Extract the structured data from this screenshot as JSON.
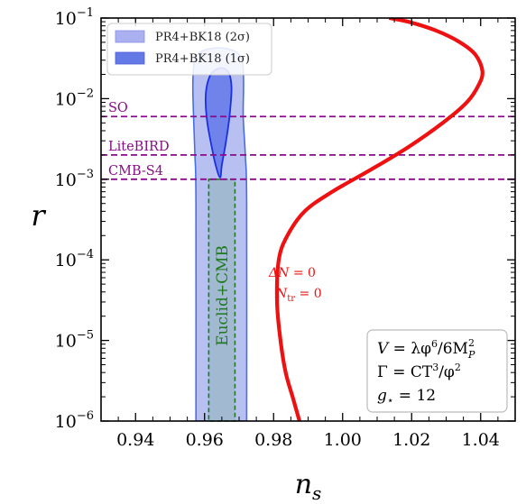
{
  "chart_data": {
    "type": "line",
    "xlabel": "n_s",
    "ylabel": "r",
    "xlim": [
      0.93,
      1.05
    ],
    "ylim": [
      1e-06,
      0.1
    ],
    "yscale": "log",
    "grid": false,
    "x_ticks": [
      {
        "value": 0.94,
        "label": "0.94"
      },
      {
        "value": 0.96,
        "label": "0.96"
      },
      {
        "value": 0.98,
        "label": "0.98"
      },
      {
        "value": 1.0,
        "label": "1.00"
      },
      {
        "value": 1.02,
        "label": "1.02"
      },
      {
        "value": 1.04,
        "label": "1.04"
      }
    ],
    "y_ticks": [
      {
        "value": 1e-06,
        "base": "10",
        "exp": "−6"
      },
      {
        "value": 1e-05,
        "base": "10",
        "exp": "−5"
      },
      {
        "value": 0.0001,
        "base": "10",
        "exp": "−4"
      },
      {
        "value": 0.001,
        "base": "10",
        "exp": "−3"
      },
      {
        "value": 0.01,
        "base": "10",
        "exp": "−2"
      },
      {
        "value": 0.1,
        "base": "10",
        "exp": "−1"
      }
    ],
    "legend": {
      "position": "top-left",
      "entries": [
        {
          "label": "PR4+BK18 (2σ)",
          "color": "#aab0f0"
        },
        {
          "label": "PR4+BK18 (1σ)",
          "color": "#6478e6"
        }
      ]
    },
    "contours": [
      {
        "name": "PR4+BK18 (2σ)",
        "fill": "#aab5ee",
        "stroke": "#4a6ee0",
        "points": [
          [
            0.9575,
            1e-06
          ],
          [
            0.9575,
            0.0005
          ],
          [
            0.9572,
            0.002
          ],
          [
            0.9568,
            0.006
          ],
          [
            0.9566,
            0.015
          ],
          [
            0.957,
            0.028
          ],
          [
            0.9585,
            0.037
          ],
          [
            0.962,
            0.042
          ],
          [
            0.966,
            0.042
          ],
          [
            0.9695,
            0.037
          ],
          [
            0.971,
            0.028
          ],
          [
            0.9713,
            0.015
          ],
          [
            0.9712,
            0.006
          ],
          [
            0.9718,
            0.002
          ],
          [
            0.9722,
            0.0005
          ],
          [
            0.9722,
            1e-06
          ]
        ]
      },
      {
        "name": "PR4+BK18 (1σ)",
        "fill": "#6c80ea",
        "stroke": "#1a30e0",
        "points": [
          [
            0.9645,
            0.00105
          ],
          [
            0.9632,
            0.0015
          ],
          [
            0.962,
            0.0026
          ],
          [
            0.9608,
            0.005
          ],
          [
            0.9603,
            0.009
          ],
          [
            0.9606,
            0.014
          ],
          [
            0.9618,
            0.02
          ],
          [
            0.9638,
            0.0235
          ],
          [
            0.9658,
            0.0235
          ],
          [
            0.9672,
            0.02
          ],
          [
            0.9678,
            0.014
          ],
          [
            0.9676,
            0.009
          ],
          [
            0.967,
            0.005
          ],
          [
            0.966,
            0.0026
          ],
          [
            0.965,
            0.0015
          ]
        ]
      }
    ],
    "bands": [
      {
        "name": "Euclid+CMB",
        "label": "Euclid+CMB",
        "x": [
          0.9612,
          0.9688
        ],
        "y": [
          1e-06,
          0.001
        ],
        "fill": "#9fb7cc",
        "stroke": "#1f7a1f",
        "label_color": "#1f7a1f"
      }
    ],
    "hlines": [
      {
        "label": "SO",
        "value": 0.006,
        "color": "#8b0a8b"
      },
      {
        "label": "LiteBIRD",
        "value": 0.002,
        "color": "#8b0a8b"
      },
      {
        "label": "CMB-S4",
        "value": 0.001,
        "color": "#8b0a8b"
      }
    ],
    "series": [
      {
        "color": "#ee1111",
        "x": [
          0.9875,
          0.9855,
          0.9835,
          0.982,
          0.981,
          0.9815,
          0.984,
          0.989,
          0.997,
          1.008,
          1.019,
          1.029,
          1.036,
          1.0395,
          1.0405,
          1.0385,
          1.034,
          1.027,
          1.019,
          1.0135
        ],
        "y": [
          1e-06,
          2e-06,
          4e-06,
          1e-05,
          3e-05,
          0.0001,
          0.0002,
          0.0004,
          0.0007,
          0.0013,
          0.0025,
          0.005,
          0.009,
          0.015,
          0.022,
          0.035,
          0.05,
          0.07,
          0.09,
          0.1
        ]
      }
    ],
    "annotations": [
      {
        "line1_lhs": "ΔN",
        "line1_rhs": " = 0",
        "line2_base": "N",
        "line2_sub": "tr",
        "line2_rhs": " = 0",
        "color": "#ee1111"
      }
    ],
    "model_box": {
      "line1": {
        "a": "V",
        "b": " = λφ",
        "b_sup": "6",
        "c": "/6M",
        "c_sup": "2",
        "c_sub": "P"
      },
      "line2": {
        "a": "Γ",
        "b": " = CT",
        "b_sup": "3",
        "c": "/φ",
        "c_sup": "2"
      },
      "line3": {
        "a": "g",
        "a_sub": "⋆",
        "b": " = 12"
      }
    }
  }
}
